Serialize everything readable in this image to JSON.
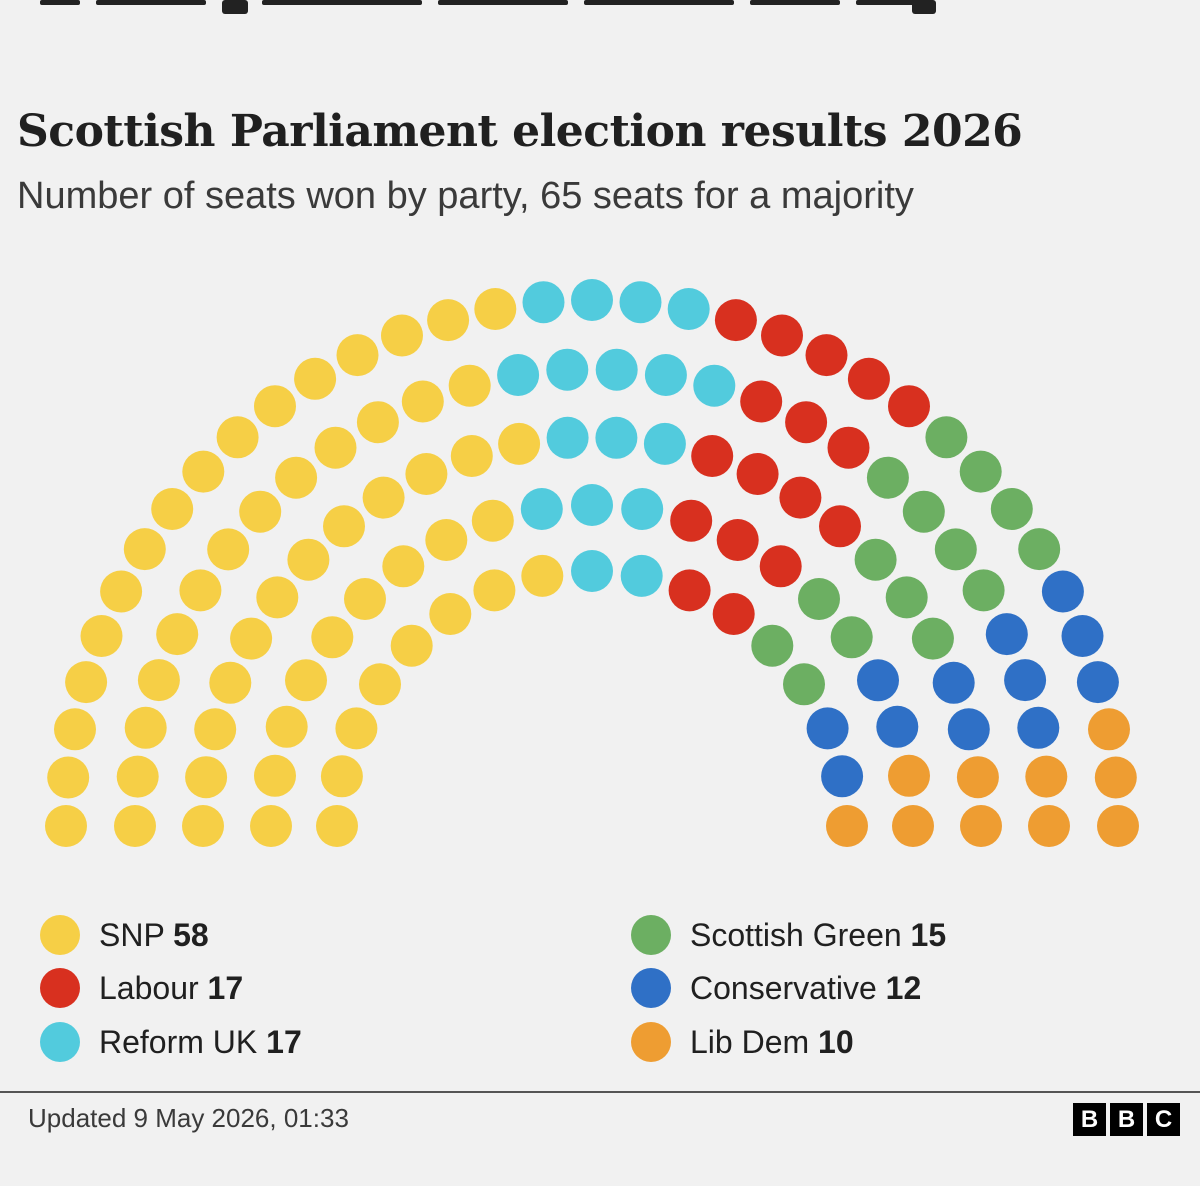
{
  "title": "Scottish Parliament election results 2026",
  "subtitle": "Number of seats won by party, 65 seats for a majority",
  "footnote": "Updated 9 May 2026, 01:33",
  "logo": [
    "B",
    "B",
    "C"
  ],
  "chart_data": {
    "type": "parliament",
    "title": "Scottish Parliament election results 2026",
    "subtitle": "Number of seats won by party, 65 seats for a majority",
    "majority": 65,
    "total_seats": 129,
    "series": [
      {
        "name": "SNP",
        "seats": 58,
        "color": "#f6cf46"
      },
      {
        "name": "Reform UK",
        "seats": 17,
        "color": "#52cbdd"
      },
      {
        "name": "Labour",
        "seats": 17,
        "color": "#d8301f"
      },
      {
        "name": "Scottish Green",
        "seats": 15,
        "color": "#6caf62"
      },
      {
        "name": "Conservative",
        "seats": 12,
        "color": "#2f70c6"
      },
      {
        "name": "Lib Dem",
        "seats": 10,
        "color": "#ee9d32"
      }
    ],
    "legend": [
      {
        "name": "SNP",
        "value": "58",
        "color": "#f6cf46"
      },
      {
        "name": "Labour",
        "value": "17",
        "color": "#d8301f"
      },
      {
        "name": "Reform UK",
        "value": "17",
        "color": "#52cbdd"
      },
      {
        "name": "Scottish Green",
        "value": "15",
        "color": "#6caf62"
      },
      {
        "name": "Conservative",
        "value": "12",
        "color": "#2f70c6"
      },
      {
        "name": "Lib Dem",
        "value": "10",
        "color": "#ee9d32"
      }
    ]
  }
}
